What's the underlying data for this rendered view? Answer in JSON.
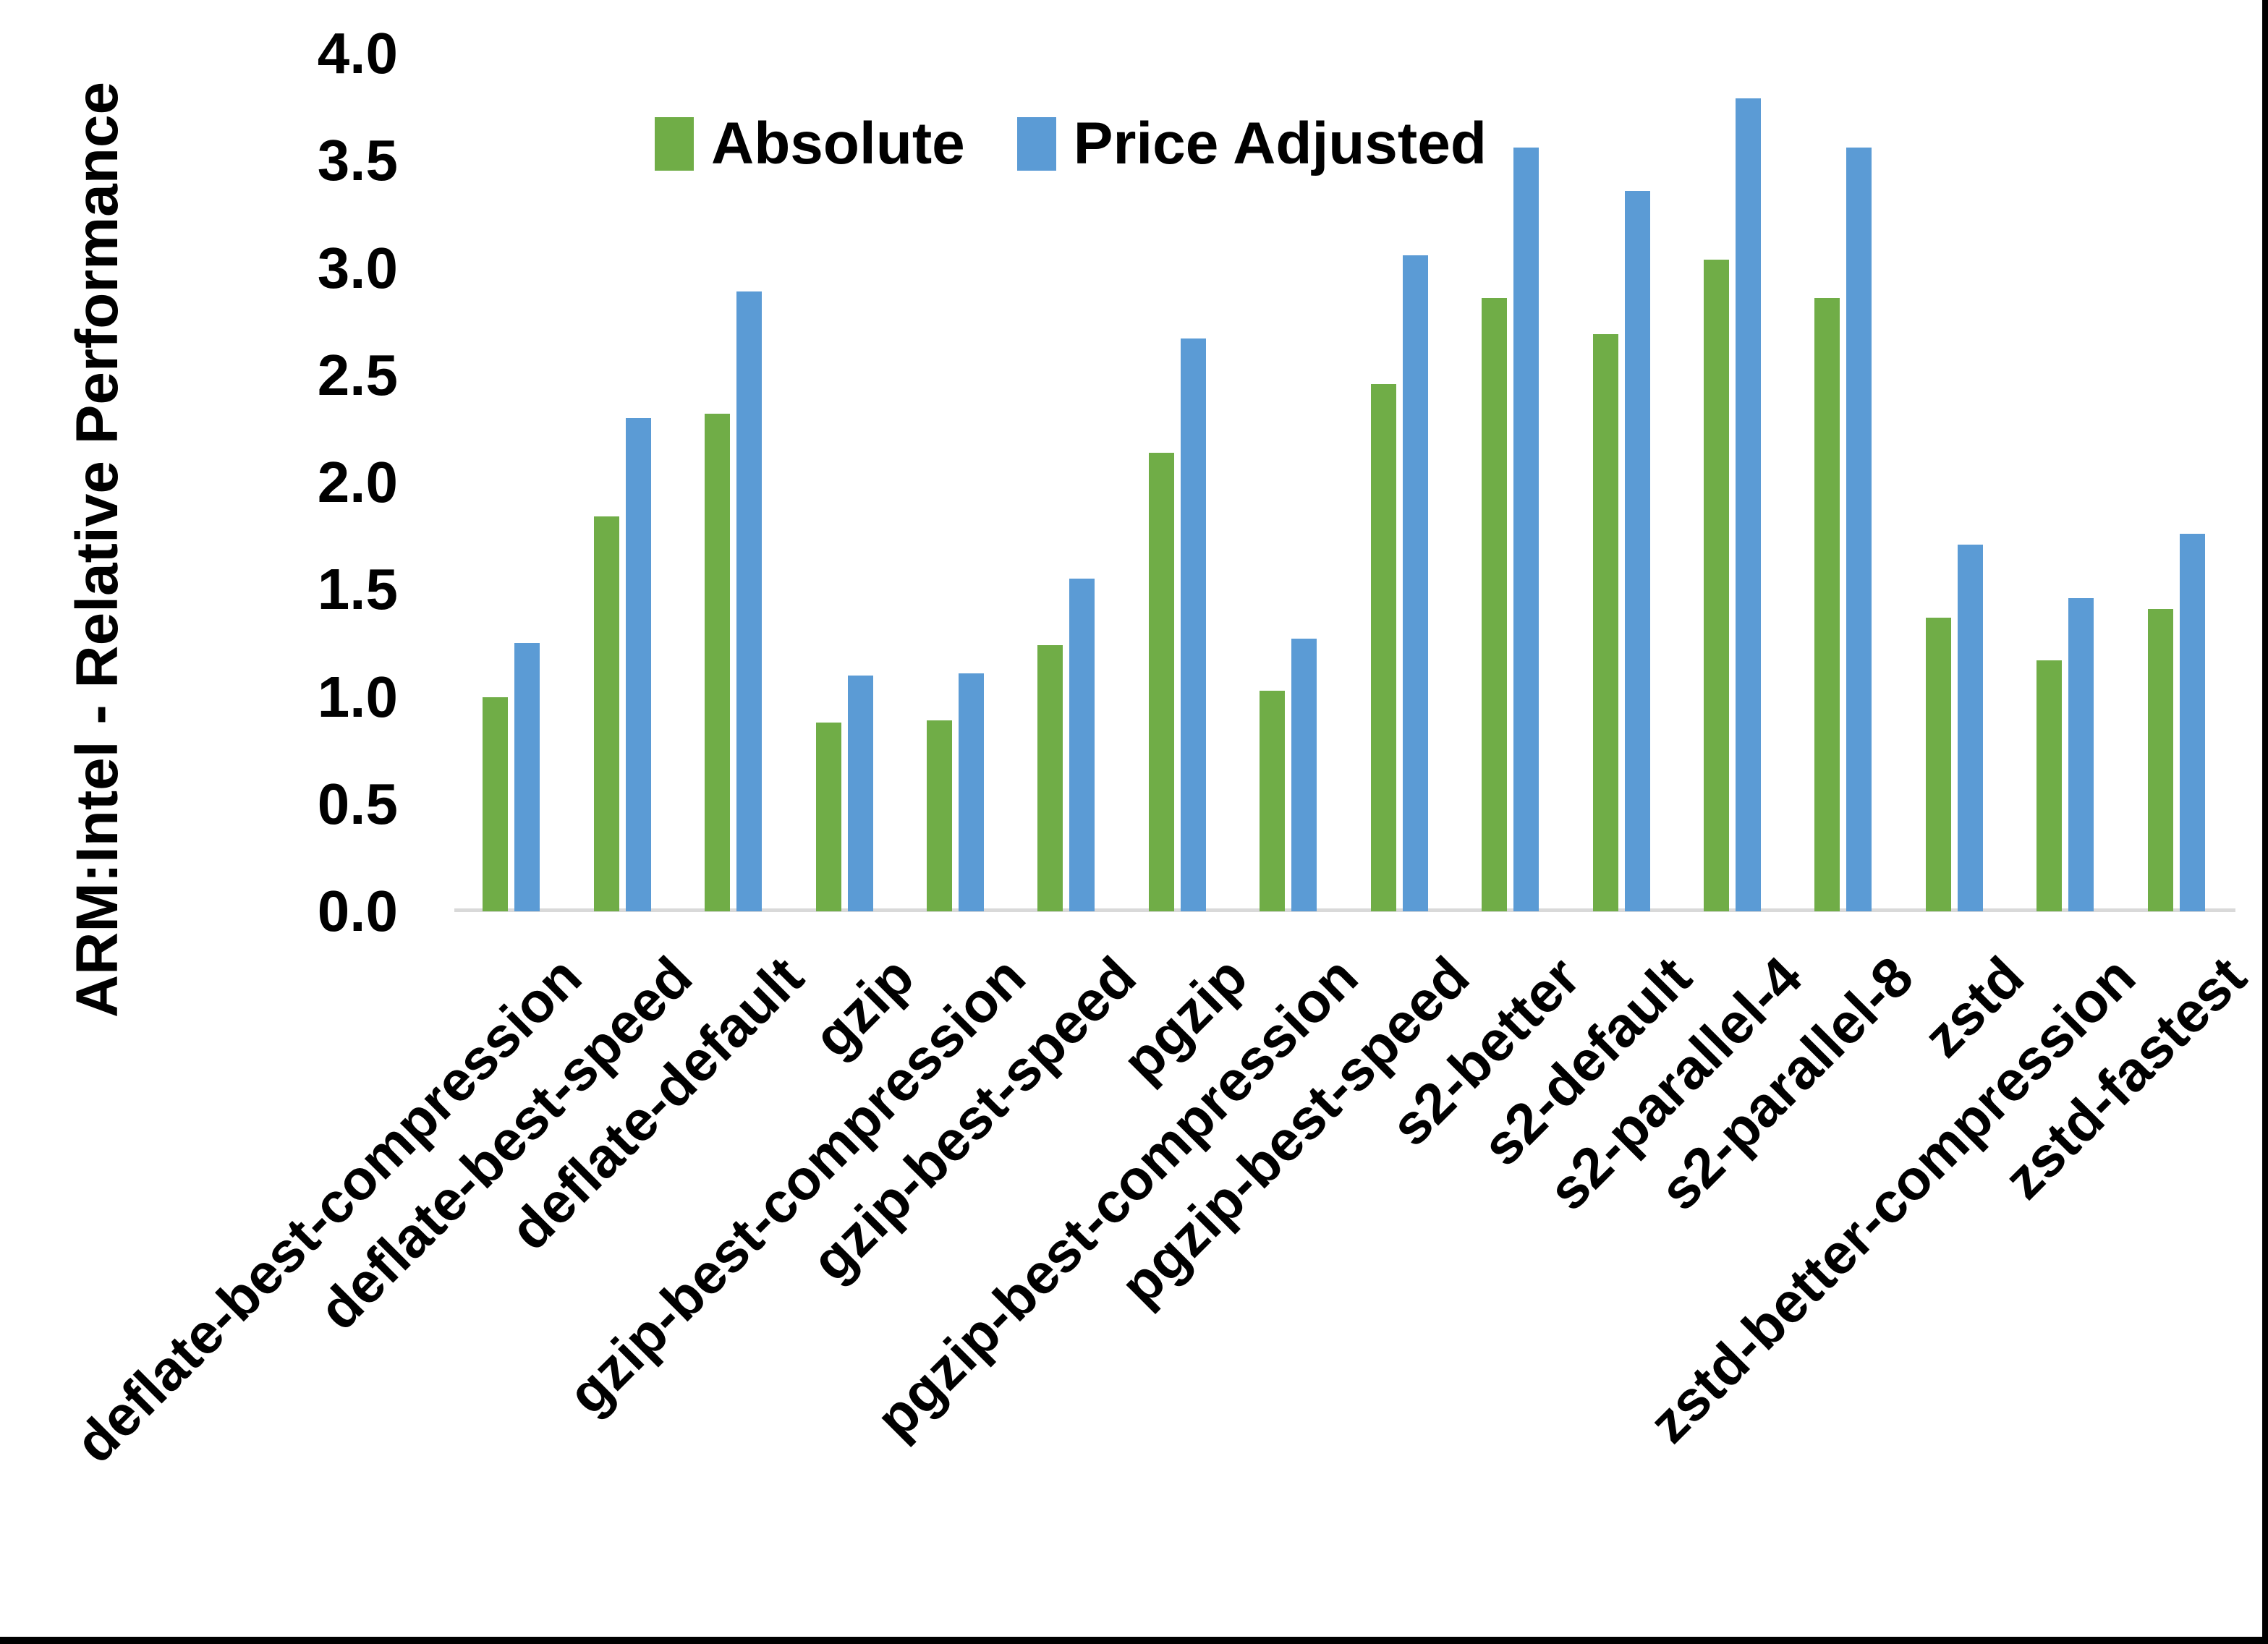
{
  "chart_data": {
    "type": "bar",
    "title": "",
    "xlabel": "",
    "ylabel": "ARM:Intel - Relative Performance",
    "ylim": [
      0.0,
      4.0
    ],
    "ytick_step": 0.5,
    "ytick_labels": [
      "0.0",
      "0.5",
      "1.0",
      "1.5",
      "2.0",
      "2.5",
      "3.0",
      "3.5",
      "4.0"
    ],
    "grid": false,
    "legend_position": "top-center",
    "categories": [
      "deflate-best-compression",
      "deflate-best-speed",
      "deflate-default",
      "gzip",
      "gzip-best-compression",
      "gzip-best-speed",
      "pgzip",
      "pgzip-best-compression",
      "pgzip-best-speed",
      "s2-better",
      "s2-default",
      "s2-parallel-4",
      "s2-parallel-8",
      "zstd",
      "zstd-better-compression",
      "zstd-fastest"
    ],
    "series": [
      {
        "name": "Absolute",
        "color": "#70AD47",
        "values": [
          1.0,
          1.84,
          2.32,
          0.88,
          0.89,
          1.24,
          2.14,
          1.03,
          2.46,
          2.86,
          2.69,
          3.04,
          2.86,
          1.37,
          1.17,
          1.41
        ]
      },
      {
        "name": "Price Adjusted",
        "color": "#5B9BD5",
        "values": [
          1.25,
          2.3,
          2.89,
          1.1,
          1.11,
          1.55,
          2.67,
          1.27,
          3.06,
          3.56,
          3.36,
          3.79,
          3.56,
          1.71,
          1.46,
          1.76
        ]
      }
    ],
    "axis_line_color": "#D9D9D9",
    "text_color": "#000000"
  }
}
